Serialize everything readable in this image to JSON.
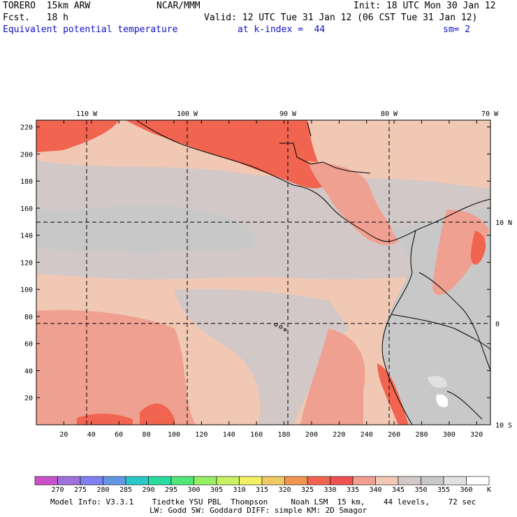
{
  "header": {
    "model": "TORERO  15km ARW",
    "org": "NCAR/MMM",
    "init": "Init: 18 UTC Mon 30 Jan 12",
    "fcst": "Fcst.   18 h",
    "valid": "Valid: 12 UTC Tue 31 Jan 12 (06 CST Tue 31 Jan 12)",
    "field": "Equivalent potential temperature",
    "level": "at k-index =  44",
    "smooth": "sm= 2"
  },
  "axes": {
    "lon_labels": [
      "110 W",
      "100 W",
      "90 W",
      "80 W",
      "70 W"
    ],
    "lat_labels": [
      "10 N",
      "0",
      "10 S"
    ],
    "y_ticks": [
      "20",
      "40",
      "60",
      "80",
      "100",
      "120",
      "140",
      "160",
      "180",
      "200",
      "220"
    ],
    "x_ticks": [
      "20",
      "40",
      "60",
      "80",
      "100",
      "120",
      "140",
      "160",
      "180",
      "200",
      "220",
      "240",
      "260",
      "280",
      "300",
      "320"
    ]
  },
  "colorbar": {
    "labels": [
      "270",
      "275",
      "280",
      "285",
      "290",
      "295",
      "300",
      "305",
      "310",
      "315",
      "320",
      "325",
      "330",
      "335",
      "340",
      "345",
      "350",
      "355",
      "360"
    ],
    "unit": "K",
    "colors": [
      "#c850c8",
      "#a070dc",
      "#8080f0",
      "#6496e6",
      "#28c8c8",
      "#28dca0",
      "#50e678",
      "#96f064",
      "#c8f064",
      "#f0f064",
      "#f0c864",
      "#f09650",
      "#f06450",
      "#f05050",
      "#f0a090",
      "#f0c8b4",
      "#d2c8c8",
      "#c8c8c8",
      "#e1e1e1",
      "#ffffff"
    ]
  },
  "footer": {
    "line1": "Model Info: V3.3.1    Tiedtke YSU PBL  Thompson     Noah LSM  15 km,    44 levels,    72 sec",
    "line2": "LW: Godd SW: Goddard DIFF: simple KM: 2D Smagor"
  }
}
